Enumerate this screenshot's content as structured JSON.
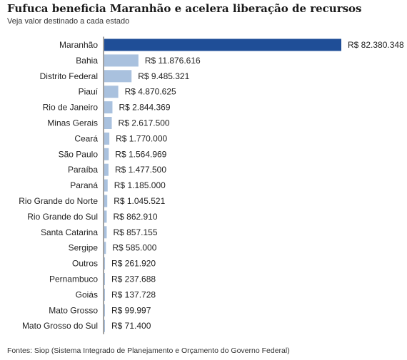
{
  "title": "Fufuca beneficia Maranhão e acelera liberação de recursos",
  "subtitle": "Veja valor destinado a cada estado",
  "footer": "Fontes: Siop (Sistema Integrado de Planejamento e Orçamento do Governo Federal)",
  "colors": {
    "highlight": "#1f4e97",
    "bar": "#a9c1de",
    "axis": "#444444"
  },
  "chart_data": {
    "type": "bar",
    "orientation": "horizontal",
    "categories": [
      "Maranhão",
      "Bahia",
      "Distrito Federal",
      "Piauí",
      "Rio de Janeiro",
      "Minas Gerais",
      "Ceará",
      "São Paulo",
      "Paraíba",
      "Paraná",
      "Rio Grande do Norte",
      "Rio Grande do Sul",
      "Santa Catarina",
      "Sergipe",
      "Outros",
      "Pernambuco",
      "Goiás",
      "Mato Grosso",
      "Mato Grosso do Sul"
    ],
    "values": [
      82380348,
      11876616,
      9485321,
      4870625,
      2844369,
      2617500,
      1770000,
      1564969,
      1477500,
      1185000,
      1045521,
      862910,
      857155,
      585000,
      261920,
      237688,
      137728,
      99997,
      71400
    ],
    "value_labels": [
      "R$ 82.380.348",
      "R$ 11.876.616",
      "R$ 9.485.321",
      "R$ 4.870.625",
      "R$ 2.844.369",
      "R$ 2.617.500",
      "R$ 1.770.000",
      "R$ 1.564.969",
      "R$ 1.477.500",
      "R$ 1.185.000",
      "R$ 1.045.521",
      "R$ 862.910",
      "R$ 857.155",
      "R$ 585.000",
      "R$ 261.920",
      "R$ 237.688",
      "R$ 137.728",
      "R$ 99.997",
      "R$ 71.400"
    ],
    "highlight_index": 0,
    "grid": false,
    "legend": "none"
  }
}
